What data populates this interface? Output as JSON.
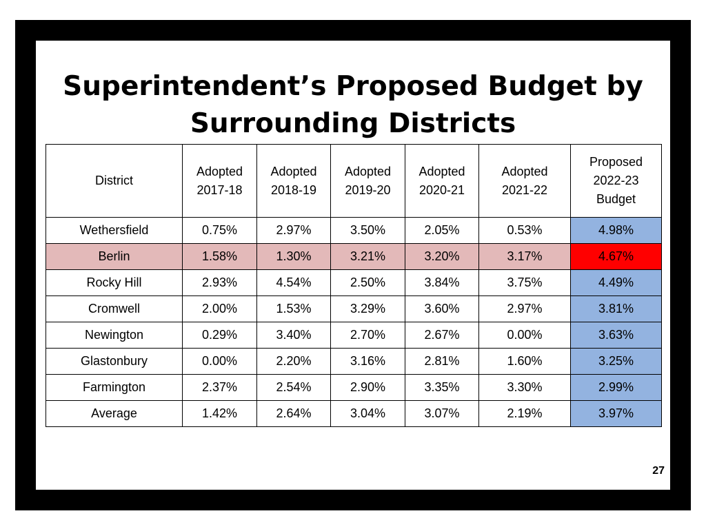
{
  "title": {
    "line1": "Superintendent’s Proposed Budget by",
    "line2": "Surrounding Districts"
  },
  "table": {
    "headers": [
      {
        "line1": "District",
        "line2": "",
        "line3": ""
      },
      {
        "line1": "Adopted",
        "line2": "2017-18",
        "line3": ""
      },
      {
        "line1": "Adopted",
        "line2": "2018-19",
        "line3": ""
      },
      {
        "line1": "Adopted",
        "line2": "2019-20",
        "line3": ""
      },
      {
        "line1": "Adopted",
        "line2": "2020-21",
        "line3": ""
      },
      {
        "line1": "Adopted",
        "line2": "2021-22",
        "line3": ""
      },
      {
        "line1": "Proposed",
        "line2": "2022-23",
        "line3": "Budget"
      }
    ],
    "rows": [
      {
        "district": "Wethersfield",
        "values": [
          "0.75%",
          "2.97%",
          "3.50%",
          "2.05%",
          "0.53%",
          "4.98%"
        ]
      },
      {
        "district": "Berlin",
        "values": [
          "1.58%",
          "1.30%",
          "3.21%",
          "3.20%",
          "3.17%",
          "4.67%"
        ]
      },
      {
        "district": "Rocky Hill",
        "values": [
          "2.93%",
          "4.54%",
          "2.50%",
          "3.84%",
          "3.75%",
          "4.49%"
        ]
      },
      {
        "district": "Cromwell",
        "values": [
          "2.00%",
          "1.53%",
          "3.29%",
          "3.60%",
          "2.97%",
          "3.81%"
        ]
      },
      {
        "district": "Newington",
        "values": [
          "0.29%",
          "3.40%",
          "2.70%",
          "2.67%",
          "0.00%",
          "3.63%"
        ]
      },
      {
        "district": "Glastonbury",
        "values": [
          "0.00%",
          "2.20%",
          "3.16%",
          "2.81%",
          "1.60%",
          "3.25%"
        ]
      },
      {
        "district": "Farmington",
        "values": [
          "2.37%",
          "2.54%",
          "2.90%",
          "3.35%",
          "3.30%",
          "2.99%"
        ]
      },
      {
        "district": "Average",
        "values": [
          "1.42%",
          "2.64%",
          "3.04%",
          "3.07%",
          "2.19%",
          "3.97%"
        ]
      }
    ]
  },
  "colors": {
    "frame": "#000000",
    "proposed_column": "#93b3e0",
    "highlight_row": "#e3b9b9",
    "highlight_cell": "#ff0000"
  },
  "page_number": "27"
}
